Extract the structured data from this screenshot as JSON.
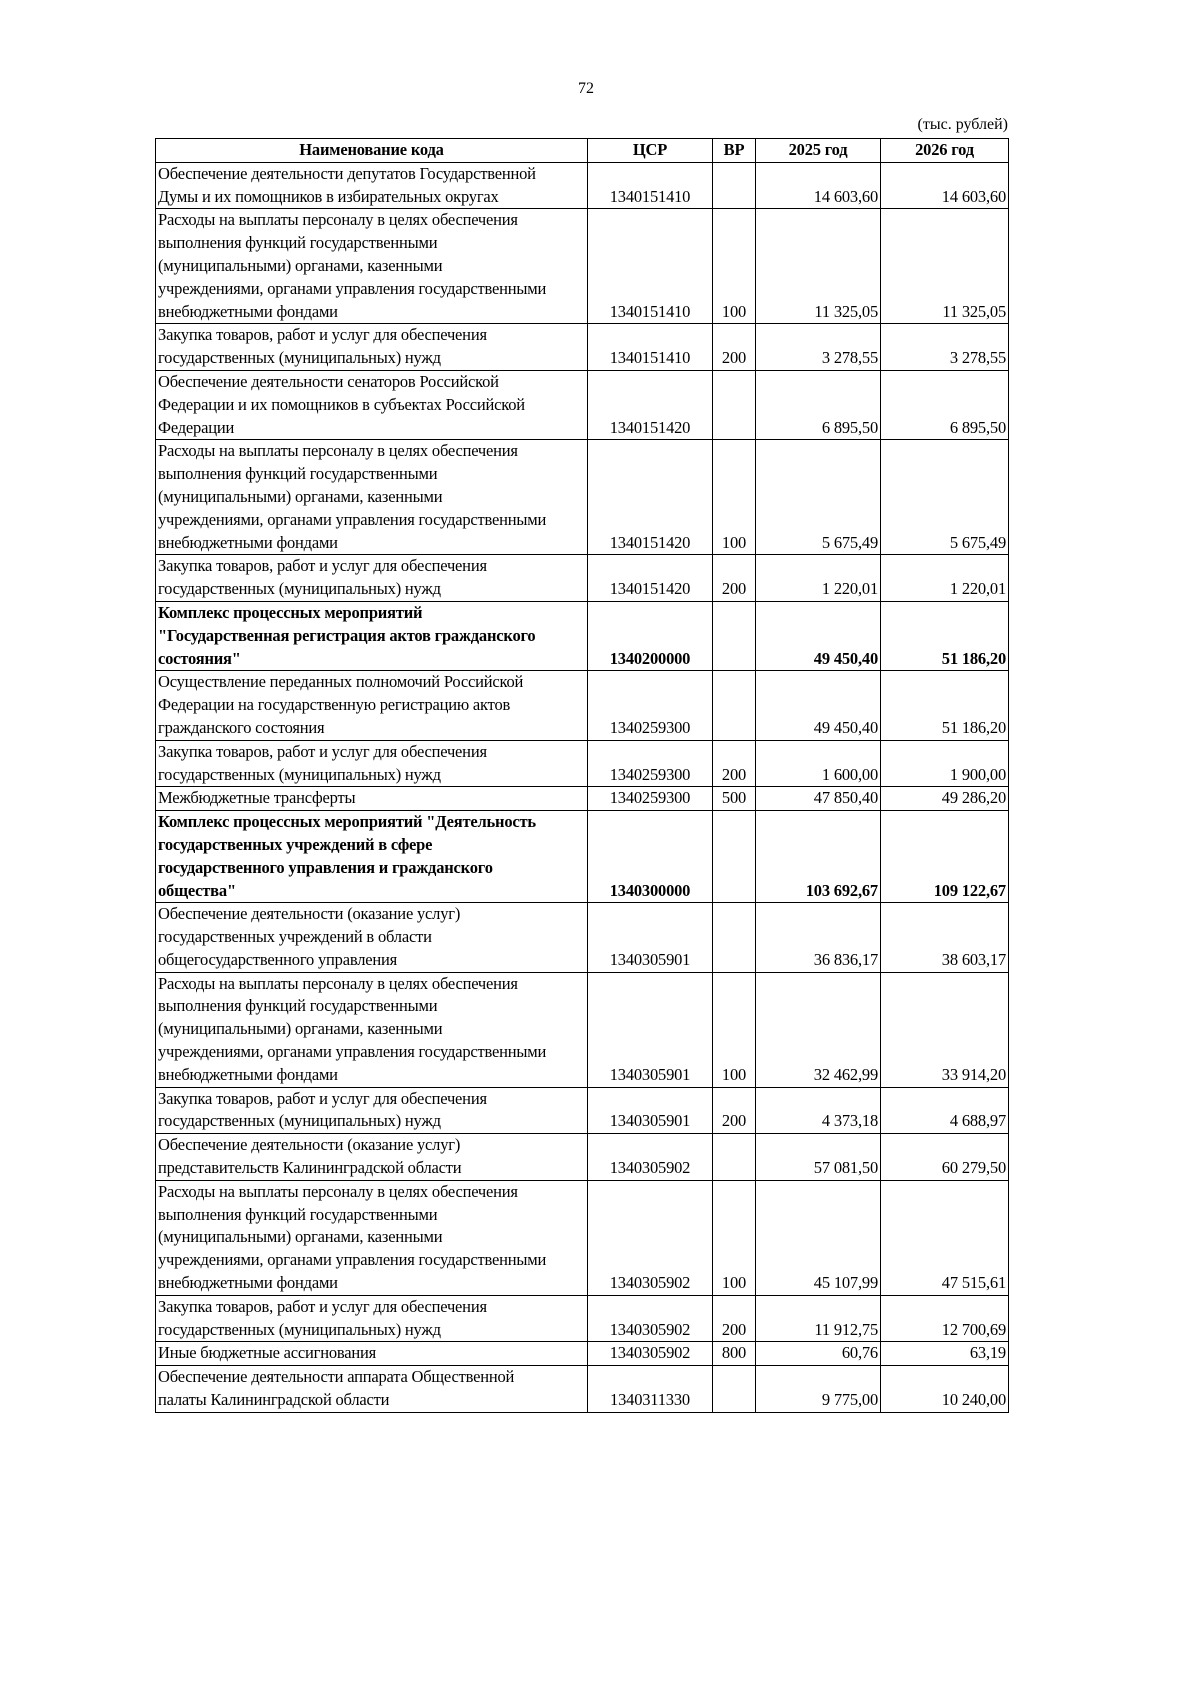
{
  "page_number": "72",
  "units": "(тыс. рублей)",
  "table": {
    "headers": [
      "Наименование кода",
      "ЦСР",
      "ВР",
      "2025 год",
      "2026 год"
    ],
    "rows": [
      {
        "name": "Обеспечение деятельности депутатов Государственной\nДумы и их помощников в избирательных округах",
        "code": "1340151410",
        "vr": "",
        "y2025": "14 603,60",
        "y2026": "14 603,60",
        "bold": false
      },
      {
        "name": "Расходы на выплаты персоналу в целях обеспечения\nвыполнения функций государственными\n(муниципальными) органами, казенными\nучреждениями, органами управления государственными\nвнебюджетными фондами",
        "code": "1340151410",
        "vr": "100",
        "y2025": "11 325,05",
        "y2026": "11 325,05",
        "bold": false
      },
      {
        "name": "Закупка товаров, работ и услуг для обеспечения\nгосударственных (муниципальных) нужд",
        "code": "1340151410",
        "vr": "200",
        "y2025": "3 278,55",
        "y2026": "3 278,55",
        "bold": false
      },
      {
        "name": "Обеспечение деятельности сенаторов Российской\nФедерации и их помощников в субъектах Российской\nФедерации",
        "code": "1340151420",
        "vr": "",
        "y2025": "6 895,50",
        "y2026": "6 895,50",
        "bold": false
      },
      {
        "name": "Расходы на выплаты персоналу в целях обеспечения\nвыполнения функций государственными\n(муниципальными) органами, казенными\nучреждениями, органами управления государственными\nвнебюджетными фондами",
        "code": "1340151420",
        "vr": "100",
        "y2025": "5 675,49",
        "y2026": "5 675,49",
        "bold": false
      },
      {
        "name": "Закупка товаров, работ и услуг для обеспечения\nгосударственных (муниципальных) нужд",
        "code": "1340151420",
        "vr": "200",
        "y2025": "1 220,01",
        "y2026": "1 220,01",
        "bold": false
      },
      {
        "name": "Комплекс процессных мероприятий\n\"Государственная регистрация актов гражданского\nсостояния\"",
        "code": "1340200000",
        "vr": "",
        "y2025": "49 450,40",
        "y2026": "51 186,20",
        "bold": true
      },
      {
        "name": "Осуществление переданных полномочий Российской\nФедерации на государственную регистрацию актов\nгражданского состояния",
        "code": "1340259300",
        "vr": "",
        "y2025": "49 450,40",
        "y2026": "51 186,20",
        "bold": false
      },
      {
        "name": "Закупка товаров, работ и услуг для обеспечения\nгосударственных (муниципальных) нужд",
        "code": "1340259300",
        "vr": "200",
        "y2025": "1 600,00",
        "y2026": "1 900,00",
        "bold": false
      },
      {
        "name": "Межбюджетные трансферты",
        "code": "1340259300",
        "vr": "500",
        "y2025": "47 850,40",
        "y2026": "49 286,20",
        "bold": false
      },
      {
        "name": "Комплекс процессных мероприятий \"Деятельность\nгосударственных учреждений в сфере\nгосударственного управления и гражданского\nобщества\"",
        "code": "1340300000",
        "vr": "",
        "y2025": "103 692,67",
        "y2026": "109 122,67",
        "bold": true
      },
      {
        "name": "Обеспечение деятельности (оказание услуг)\nгосударственных учреждений в области\nобщегосударственного управления",
        "code": "1340305901",
        "vr": "",
        "y2025": "36 836,17",
        "y2026": "38 603,17",
        "bold": false
      },
      {
        "name": "Расходы на выплаты персоналу в целях обеспечения\nвыполнения функций государственными\n(муниципальными) органами, казенными\nучреждениями, органами управления государственными\nвнебюджетными фондами",
        "code": "1340305901",
        "vr": "100",
        "y2025": "32 462,99",
        "y2026": "33 914,20",
        "bold": false
      },
      {
        "name": "Закупка товаров, работ и услуг для обеспечения\nгосударственных (муниципальных) нужд",
        "code": "1340305901",
        "vr": "200",
        "y2025": "4 373,18",
        "y2026": "4 688,97",
        "bold": false
      },
      {
        "name": "Обеспечение деятельности (оказание услуг)\nпредставительств Калининградской области",
        "code": "1340305902",
        "vr": "",
        "y2025": "57 081,50",
        "y2026": "60 279,50",
        "bold": false
      },
      {
        "name": "Расходы на выплаты персоналу в целях обеспечения\nвыполнения функций государственными\n(муниципальными) органами, казенными\nучреждениями, органами управления государственными\nвнебюджетными фондами",
        "code": "1340305902",
        "vr": "100",
        "y2025": "45 107,99",
        "y2026": "47 515,61",
        "bold": false
      },
      {
        "name": "Закупка товаров, работ и услуг для обеспечения\nгосударственных (муниципальных) нужд",
        "code": "1340305902",
        "vr": "200",
        "y2025": "11 912,75",
        "y2026": "12 700,69",
        "bold": false
      },
      {
        "name": "Иные бюджетные ассигнования",
        "code": "1340305902",
        "vr": "800",
        "y2025": "60,76",
        "y2026": "63,19",
        "bold": false
      },
      {
        "name": "Обеспечение деятельности аппарата Общественной\nпалаты Калининградской области",
        "code": "1340311330",
        "vr": "",
        "y2025": "9 775,00",
        "y2026": "10 240,00",
        "bold": false
      }
    ]
  }
}
